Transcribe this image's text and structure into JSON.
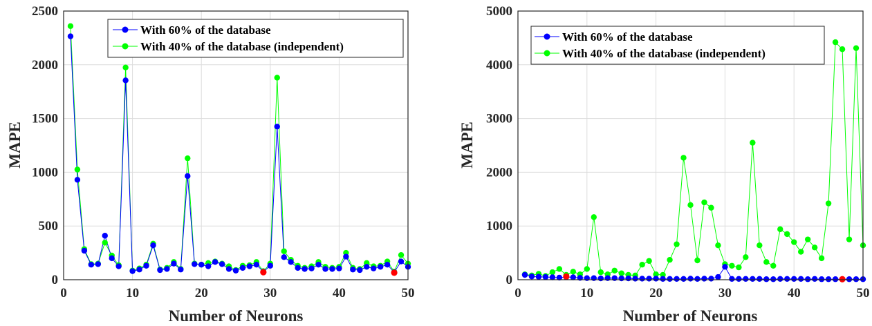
{
  "chart_data": [
    {
      "type": "line",
      "title": "",
      "xlabel": "Number of Neurons",
      "ylabel": "MAPE",
      "xlim": [
        0,
        50
      ],
      "ylim": [
        0,
        2500
      ],
      "xticks": [
        0,
        10,
        20,
        30,
        40,
        50
      ],
      "yticks": [
        0,
        500,
        1000,
        1500,
        2000,
        2500
      ],
      "grid": true,
      "legend_position": "top-right",
      "x": [
        1,
        2,
        3,
        4,
        5,
        6,
        7,
        8,
        9,
        10,
        11,
        12,
        13,
        14,
        15,
        16,
        17,
        18,
        19,
        20,
        21,
        22,
        23,
        24,
        25,
        26,
        27,
        28,
        29,
        30,
        31,
        32,
        33,
        34,
        35,
        36,
        37,
        38,
        39,
        40,
        41,
        42,
        43,
        44,
        45,
        46,
        47,
        48,
        49,
        50
      ],
      "series": [
        {
          "name": "With 60% of the database",
          "color": "#0000ff",
          "values": [
            2265,
            930,
            270,
            140,
            145,
            410,
            200,
            125,
            1855,
            80,
            95,
            130,
            320,
            90,
            100,
            150,
            95,
            965,
            145,
            140,
            125,
            165,
            145,
            100,
            85,
            110,
            125,
            140,
            75,
            130,
            1425,
            210,
            165,
            110,
            100,
            105,
            140,
            100,
            100,
            105,
            215,
            95,
            90,
            120,
            105,
            120,
            140,
            70,
            170,
            120
          ]
        },
        {
          "name": "With 40% of the database (independent)",
          "color": "#00ff00",
          "values": [
            2360,
            1025,
            285,
            145,
            150,
            345,
            225,
            135,
            1975,
            85,
            105,
            140,
            335,
            95,
            110,
            165,
            100,
            1130,
            150,
            140,
            155,
            170,
            150,
            125,
            90,
            130,
            135,
            165,
            80,
            150,
            1880,
            265,
            185,
            130,
            110,
            125,
            165,
            120,
            110,
            120,
            250,
            110,
            100,
            155,
            125,
            130,
            170,
            75,
            230,
            150
          ]
        }
      ],
      "minimum_markers": [
        {
          "x": 29,
          "y": 70,
          "color": "#ff0000"
        },
        {
          "x": 48,
          "y": 65,
          "color": "#ff0000"
        }
      ]
    },
    {
      "type": "line",
      "title": "",
      "xlabel": "Number of Neurons",
      "ylabel": "MAPE",
      "xlim": [
        0,
        50
      ],
      "ylim": [
        0,
        5000
      ],
      "xticks": [
        0,
        10,
        20,
        30,
        40,
        50
      ],
      "yticks": [
        0,
        1000,
        2000,
        3000,
        4000,
        5000
      ],
      "grid": true,
      "legend_position": "top-left",
      "x": [
        1,
        2,
        3,
        4,
        5,
        6,
        7,
        8,
        9,
        10,
        11,
        12,
        13,
        14,
        15,
        16,
        17,
        18,
        19,
        20,
        21,
        22,
        23,
        24,
        25,
        26,
        27,
        28,
        29,
        30,
        31,
        32,
        33,
        34,
        35,
        36,
        37,
        38,
        39,
        40,
        41,
        42,
        43,
        44,
        45,
        46,
        47,
        48,
        49,
        50
      ],
      "series": [
        {
          "name": "With 60% of the database",
          "color": "#0000ff",
          "values": [
            90,
            60,
            55,
            50,
            45,
            40,
            50,
            45,
            35,
            30,
            30,
            25,
            30,
            30,
            25,
            25,
            20,
            20,
            20,
            20,
            15,
            15,
            15,
            15,
            20,
            15,
            20,
            20,
            50,
            240,
            15,
            15,
            15,
            15,
            15,
            10,
            10,
            15,
            15,
            15,
            15,
            10,
            15,
            10,
            10,
            10,
            10,
            10,
            10,
            10
          ]
        },
        {
          "name": "With 40% of the database (independent)",
          "color": "#00ff00",
          "values": [
            100,
            80,
            110,
            70,
            140,
            200,
            90,
            150,
            100,
            200,
            1165,
            140,
            100,
            170,
            120,
            90,
            80,
            280,
            350,
            100,
            90,
            370,
            660,
            2270,
            1390,
            360,
            1440,
            1340,
            640,
            290,
            260,
            230,
            420,
            2550,
            640,
            330,
            260,
            940,
            850,
            700,
            520,
            750,
            600,
            400,
            1420,
            4420,
            4290,
            750,
            4310,
            640
          ]
        }
      ],
      "minimum_markers": [
        {
          "x": 7,
          "y": 60,
          "color": "#ff0000"
        },
        {
          "x": 47,
          "y": 10,
          "color": "#ff0000"
        }
      ]
    }
  ]
}
